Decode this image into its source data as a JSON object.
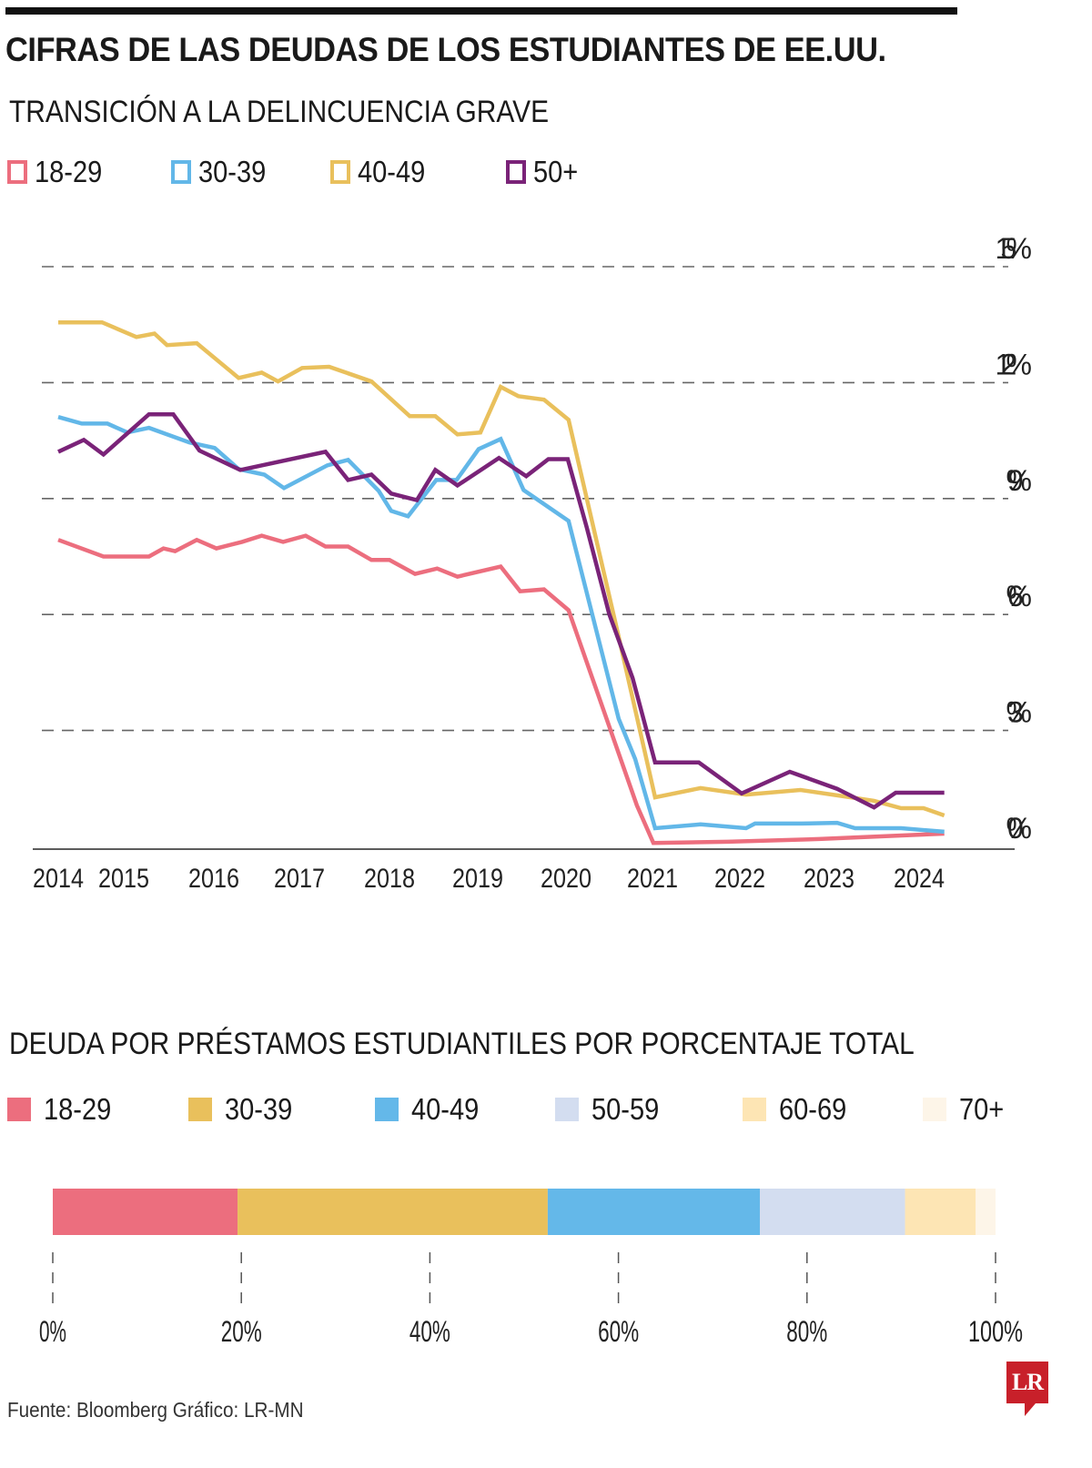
{
  "header": {
    "title": "CIFRAS DE LAS DEUDAS DE LOS ESTUDIANTES DE EE.UU."
  },
  "chart_data": [
    {
      "type": "line",
      "title": "TRANSICIÓN A LA DELINCUENCIA GRAVE",
      "xlabel": "",
      "ylabel": "",
      "ylim": [
        0,
        15
      ],
      "yticks": [
        0,
        3,
        6,
        9,
        12,
        15
      ],
      "ytick_labels": [
        "0%",
        "3%",
        "6%",
        "9%",
        "12%",
        "15%"
      ],
      "xticks": [
        2014,
        2015,
        2016,
        2017,
        2018,
        2019,
        2020,
        2021,
        2022,
        2023,
        2024
      ],
      "xtick_labels": [
        "2014",
        "2015",
        "2016",
        "2017",
        "2018",
        "2019",
        "2020",
        "2021",
        "2022",
        "2023",
        "2024"
      ],
      "grid": "horizontal dashed",
      "legend_position": "top-left",
      "series": [
        {
          "name": "18-29",
          "color": "#ec6e7e",
          "points": [
            [
              2014.0,
              7.93
            ],
            [
              2014.69,
              7.5
            ],
            [
              2015.28,
              7.5
            ],
            [
              2015.44,
              7.71
            ],
            [
              2015.57,
              7.64
            ],
            [
              2015.81,
              7.93
            ],
            [
              2016.03,
              7.71
            ],
            [
              2016.33,
              7.88
            ],
            [
              2016.56,
              8.04
            ],
            [
              2016.81,
              7.88
            ],
            [
              2017.07,
              8.04
            ],
            [
              2017.29,
              7.76
            ],
            [
              2017.54,
              7.76
            ],
            [
              2017.8,
              7.41
            ],
            [
              2018.0,
              7.41
            ],
            [
              2018.29,
              7.05
            ],
            [
              2018.54,
              7.19
            ],
            [
              2018.77,
              6.98
            ],
            [
              2019.26,
              7.24
            ],
            [
              2019.48,
              6.6
            ],
            [
              2019.75,
              6.65
            ],
            [
              2020.03,
              6.11
            ],
            [
              2020.82,
              1.06
            ],
            [
              2021.01,
              0.09
            ],
            [
              2021.865,
              0.12
            ],
            [
              2022.89,
              0.19
            ],
            [
              2024.28,
              0.33
            ]
          ]
        },
        {
          "name": "30-39",
          "color": "#62b7e8",
          "points": [
            [
              2014.0,
              11.11
            ],
            [
              2014.36,
              10.94
            ],
            [
              2014.75,
              10.94
            ],
            [
              2015.04,
              10.71
            ],
            [
              2015.28,
              10.83
            ],
            [
              2015.73,
              10.45
            ],
            [
              2016.01,
              10.31
            ],
            [
              2016.29,
              9.76
            ],
            [
              2016.59,
              9.62
            ],
            [
              2016.82,
              9.27
            ],
            [
              2017.31,
              9.86
            ],
            [
              2017.54,
              10.0
            ],
            [
              2017.88,
              9.2
            ],
            [
              2018.02,
              8.68
            ],
            [
              2018.21,
              8.54
            ],
            [
              2018.53,
              9.48
            ],
            [
              2018.76,
              9.48
            ],
            [
              2019.01,
              10.28
            ],
            [
              2019.26,
              10.54
            ],
            [
              2019.52,
              9.22
            ],
            [
              2020.03,
              8.42
            ],
            [
              2020.61,
              3.3
            ],
            [
              2020.8,
              2.26
            ],
            [
              2021.03,
              0.47
            ],
            [
              2021.55,
              0.57
            ],
            [
              2022.07,
              0.47
            ],
            [
              2022.17,
              0.59
            ],
            [
              2022.69,
              0.59
            ],
            [
              2023.09,
              0.61
            ],
            [
              2023.29,
              0.47
            ],
            [
              2023.8,
              0.47
            ],
            [
              2024.28,
              0.38
            ]
          ]
        },
        {
          "name": "40-49",
          "color": "#e9c05c",
          "points": [
            [
              2014.0,
              13.56
            ],
            [
              2014.67,
              13.56
            ],
            [
              2015.14,
              13.18
            ],
            [
              2015.34,
              13.27
            ],
            [
              2015.48,
              12.97
            ],
            [
              2015.81,
              13.02
            ],
            [
              2016.29,
              12.12
            ],
            [
              2016.56,
              12.26
            ],
            [
              2016.75,
              12.03
            ],
            [
              2017.03,
              12.38
            ],
            [
              2017.33,
              12.41
            ],
            [
              2017.8,
              12.03
            ],
            [
              2018.23,
              11.13
            ],
            [
              2018.52,
              11.13
            ],
            [
              2018.77,
              10.66
            ],
            [
              2019.03,
              10.71
            ],
            [
              2019.26,
              11.89
            ],
            [
              2019.46,
              11.65
            ],
            [
              2019.75,
              11.56
            ],
            [
              2020.03,
              11.04
            ],
            [
              2020.61,
              5.42
            ],
            [
              2021.03,
              1.27
            ],
            [
              2021.55,
              1.51
            ],
            [
              2022.07,
              1.34
            ],
            [
              2022.68,
              1.46
            ],
            [
              2023.09,
              1.32
            ],
            [
              2023.5,
              1.18
            ],
            [
              2023.8,
              0.99
            ],
            [
              2024.05,
              0.99
            ],
            [
              2024.28,
              0.8
            ]
          ]
        },
        {
          "name": "50+",
          "color": "#7a2378",
          "points": [
            [
              2014.0,
              10.21
            ],
            [
              2014.39,
              10.52
            ],
            [
              2014.69,
              10.14
            ],
            [
              2015.28,
              11.18
            ],
            [
              2015.55,
              11.18
            ],
            [
              2015.84,
              10.24
            ],
            [
              2016.31,
              9.74
            ],
            [
              2017.29,
              10.21
            ],
            [
              2017.54,
              9.48
            ],
            [
              2017.8,
              9.62
            ],
            [
              2018.02,
              9.13
            ],
            [
              2018.31,
              8.96
            ],
            [
              2018.52,
              9.74
            ],
            [
              2018.77,
              9.34
            ],
            [
              2019.24,
              10.05
            ],
            [
              2019.55,
              9.58
            ],
            [
              2019.8,
              10.02
            ],
            [
              2020.02,
              10.02
            ],
            [
              2020.24,
              8.25
            ],
            [
              2020.5,
              6.01
            ],
            [
              2020.77,
              4.36
            ],
            [
              2021.03,
              2.17
            ],
            [
              2021.53,
              2.17
            ],
            [
              2022.02,
              1.37
            ],
            [
              2022.56,
              1.93
            ],
            [
              2023.09,
              1.49
            ],
            [
              2023.5,
              1.01
            ],
            [
              2023.74,
              1.39
            ],
            [
              2024.28,
              1.39
            ]
          ]
        }
      ]
    },
    {
      "type": "bar",
      "orientation": "horizontal-stacked",
      "title": "DEUDA POR PRÉSTAMOS ESTUDIANTILES POR PORCENTAJE TOTAL",
      "xlim": [
        0,
        100
      ],
      "xticks": [
        0,
        20,
        40,
        60,
        80,
        100
      ],
      "xtick_labels": [
        "0%",
        "20%",
        "40%",
        "60%",
        "80%",
        "100%"
      ],
      "legend_position": "top",
      "categories": [
        "18-29",
        "30-39",
        "40-49",
        "50-59",
        "60-69",
        "70+"
      ],
      "values": [
        19.6,
        32.9,
        22.5,
        15.4,
        7.5,
        2.1
      ],
      "colors": [
        "#ec6e7e",
        "#e9c05c",
        "#64b8e9",
        "#d3ddf0",
        "#fde5b4",
        "#fdf5e8"
      ]
    }
  ],
  "legend_top": [
    {
      "label": "18-29",
      "color": "#ec6e7e"
    },
    {
      "label": "30-39",
      "color": "#62b7e8"
    },
    {
      "label": "40-49",
      "color": "#e9c05c"
    },
    {
      "label": "50+",
      "color": "#7a2378"
    }
  ],
  "legend_bottom": [
    {
      "label": "18-29",
      "color": "#ec6e7e"
    },
    {
      "label": "30-39",
      "color": "#e9c05c"
    },
    {
      "label": "40-49",
      "color": "#64b8e9"
    },
    {
      "label": "50-59",
      "color": "#d3ddf0"
    },
    {
      "label": "60-69",
      "color": "#fde5b4"
    },
    {
      "label": "70+",
      "color": "#fdf5e8"
    }
  ],
  "footer": {
    "source": "Fuente: Bloomberg  Gráfico: LR-MN",
    "logo_text": "LR",
    "logo_color": "#c8202a"
  }
}
